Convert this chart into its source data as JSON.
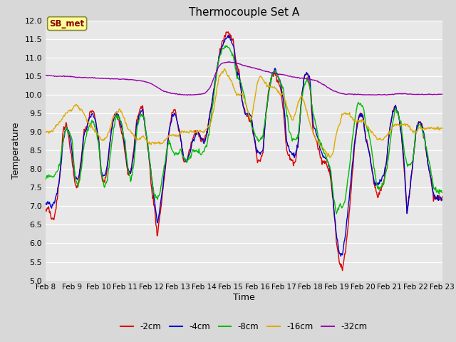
{
  "title": "Thermocouple Set A",
  "xlabel": "Time",
  "ylabel": "Temperature",
  "ylim": [
    5.0,
    12.0
  ],
  "yticks": [
    5.0,
    5.5,
    6.0,
    6.5,
    7.0,
    7.5,
    8.0,
    8.5,
    9.0,
    9.5,
    10.0,
    10.5,
    11.0,
    11.5,
    12.0
  ],
  "colors": {
    "-2cm": "#dd0000",
    "-4cm": "#0000cc",
    "-8cm": "#00bb00",
    "-16cm": "#ddaa00",
    "-32cm": "#9900aa"
  },
  "sb_met_label": "SB_met",
  "background_color": "#d8d8d8",
  "plot_bg_color": "#e8e8e8",
  "x_start": 8.0,
  "x_end": 23.0,
  "xtick_positions": [
    8,
    9,
    10,
    11,
    12,
    13,
    14,
    15,
    16,
    17,
    18,
    19,
    20,
    21,
    22,
    23
  ],
  "xtick_labels": [
    "Feb 8",
    "Feb 9",
    "Feb 10",
    "Feb 11",
    "Feb 12",
    "Feb 13",
    "Feb 14",
    "Feb 15",
    "Feb 16",
    "Feb 17",
    "Feb 18",
    "Feb 19",
    "Feb 20",
    "Feb 21",
    "Feb 22",
    "Feb 23"
  ]
}
